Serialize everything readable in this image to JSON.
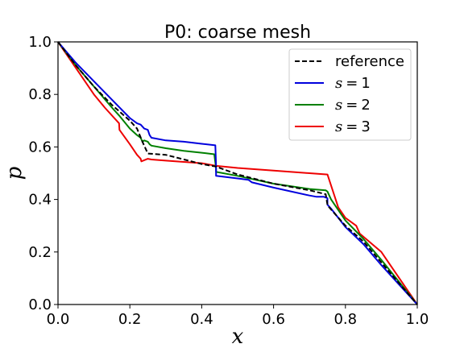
{
  "chart_data": {
    "type": "line",
    "title": "P0: coarse mesh",
    "xlabel": "x",
    "ylabel": "p",
    "xlim": [
      0.0,
      1.0
    ],
    "ylim": [
      0.0,
      1.0
    ],
    "xticks": [
      "0.0",
      "0.2",
      "0.4",
      "0.6",
      "0.8",
      "1.0"
    ],
    "yticks": [
      "0.0",
      "0.2",
      "0.4",
      "0.6",
      "0.8",
      "1.0"
    ],
    "grid": false,
    "legend_position": "top-right",
    "series": [
      {
        "name": "reference",
        "color": "#000000",
        "style": "dashed",
        "x": [
          0.0,
          0.05,
          0.1,
          0.15,
          0.2,
          0.22,
          0.235,
          0.25,
          0.3,
          0.4,
          0.44,
          0.5,
          0.6,
          0.7,
          0.745,
          0.75,
          0.755,
          0.8,
          0.85,
          0.9,
          0.95,
          1.0
        ],
        "y": [
          1.0,
          0.91,
          0.83,
          0.76,
          0.7,
          0.67,
          0.62,
          0.575,
          0.57,
          0.535,
          0.525,
          0.495,
          0.46,
          0.435,
          0.42,
          0.38,
          0.37,
          0.3,
          0.24,
          0.16,
          0.08,
          0.0
        ]
      },
      {
        "name": "s = 1",
        "label_parts": [
          "s",
          "=",
          "1"
        ],
        "color": "#0000dd",
        "style": "solid",
        "x": [
          0.0,
          0.05,
          0.1,
          0.15,
          0.2,
          0.22,
          0.23,
          0.24,
          0.25,
          0.255,
          0.26,
          0.3,
          0.35,
          0.4,
          0.438,
          0.44,
          0.44,
          0.5,
          0.53,
          0.54,
          0.6,
          0.7,
          0.72,
          0.73,
          0.74,
          0.75,
          0.75,
          0.76,
          0.8,
          0.85,
          0.9,
          0.95,
          1.0
        ],
        "y": [
          1.0,
          0.92,
          0.85,
          0.78,
          0.71,
          0.69,
          0.685,
          0.67,
          0.665,
          0.645,
          0.635,
          0.625,
          0.62,
          0.612,
          0.606,
          0.53,
          0.49,
          0.48,
          0.475,
          0.465,
          0.445,
          0.415,
          0.41,
          0.41,
          0.41,
          0.405,
          0.38,
          0.365,
          0.295,
          0.23,
          0.15,
          0.075,
          0.0
        ]
      },
      {
        "name": "s = 2",
        "label_parts": [
          "s",
          "=",
          "2"
        ],
        "color": "#008000",
        "style": "solid",
        "x": [
          0.0,
          0.05,
          0.1,
          0.15,
          0.17,
          0.2,
          0.22,
          0.23,
          0.235,
          0.24,
          0.25,
          0.255,
          0.26,
          0.3,
          0.35,
          0.4,
          0.435,
          0.44,
          0.44,
          0.5,
          0.6,
          0.7,
          0.745,
          0.75,
          0.76,
          0.8,
          0.85,
          0.9,
          0.95,
          1.0
        ],
        "y": [
          1.0,
          0.91,
          0.83,
          0.75,
          0.72,
          0.67,
          0.645,
          0.635,
          0.62,
          0.625,
          0.62,
          0.61,
          0.605,
          0.595,
          0.585,
          0.578,
          0.572,
          0.52,
          0.505,
          0.49,
          0.46,
          0.44,
          0.435,
          0.43,
          0.4,
          0.32,
          0.25,
          0.17,
          0.085,
          0.0
        ]
      },
      {
        "name": "s = 3",
        "label_parts": [
          "s",
          "=",
          "3"
        ],
        "color": "#ee0000",
        "style": "solid",
        "x": [
          0.0,
          0.05,
          0.1,
          0.13,
          0.17,
          0.171,
          0.2,
          0.22,
          0.23,
          0.232,
          0.25,
          0.26,
          0.3,
          0.35,
          0.4,
          0.44,
          0.5,
          0.6,
          0.7,
          0.75,
          0.78,
          0.8,
          0.83,
          0.84,
          0.9,
          0.95,
          1.0
        ],
        "y": [
          1.0,
          0.9,
          0.8,
          0.75,
          0.69,
          0.665,
          0.61,
          0.57,
          0.555,
          0.545,
          0.555,
          0.552,
          0.548,
          0.543,
          0.538,
          0.528,
          0.52,
          0.51,
          0.5,
          0.495,
          0.37,
          0.33,
          0.3,
          0.27,
          0.2,
          0.1,
          0.0
        ]
      }
    ]
  }
}
